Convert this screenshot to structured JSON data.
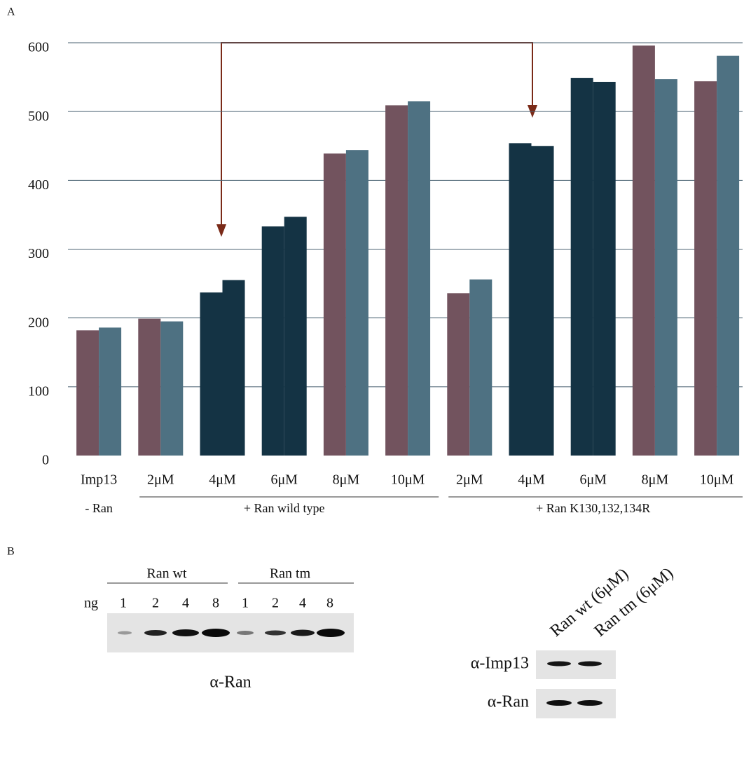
{
  "panel_labels": [
    "A",
    "B"
  ],
  "chart_data": {
    "type": "bar",
    "categories": [
      "Imp13",
      "2μM",
      "4μM",
      "6μM",
      "8μM",
      "10μM",
      "2μM",
      "4μM",
      "6μM",
      "8μM",
      "10μM"
    ],
    "series": [
      {
        "colors": [
          "#72535e",
          "#72535e",
          "#143344",
          "#143344",
          "#72535e",
          "#72535e",
          "#72535e",
          "#143344",
          "#143344",
          "#72535e",
          "#72535e"
        ],
        "values": [
          182,
          199,
          237,
          333,
          439,
          509,
          236,
          454,
          549,
          596,
          544
        ]
      },
      {
        "colors": [
          "#4e7182",
          "#4e7182",
          "#143344",
          "#143344",
          "#4e7182",
          "#4e7182",
          "#4e7182",
          "#143344",
          "#143344",
          "#4e7182",
          "#4e7182"
        ],
        "values": [
          186,
          195,
          255,
          347,
          444,
          515,
          256,
          450,
          543,
          547,
          581
        ]
      }
    ],
    "groups": [
      "- Ran",
      "+ Ran wild type",
      "+ Ran K130,132,134R"
    ],
    "ylim": [
      0,
      600
    ],
    "yticks": [
      0,
      100,
      200,
      300,
      400,
      500,
      600
    ],
    "grid": true
  },
  "blot_left": {
    "groups": [
      "Ran wt",
      "Ran tm"
    ],
    "unit": "ng",
    "amounts": [
      "1",
      "2",
      "4",
      "8",
      "1",
      "2",
      "4",
      "8"
    ],
    "antibody": "α-Ran"
  },
  "blot_right": {
    "lanes": [
      "Ran wt (6μM)",
      "Ran tm (6μM)"
    ],
    "antibodies": [
      "α-Imp13",
      "α-Ran"
    ]
  }
}
